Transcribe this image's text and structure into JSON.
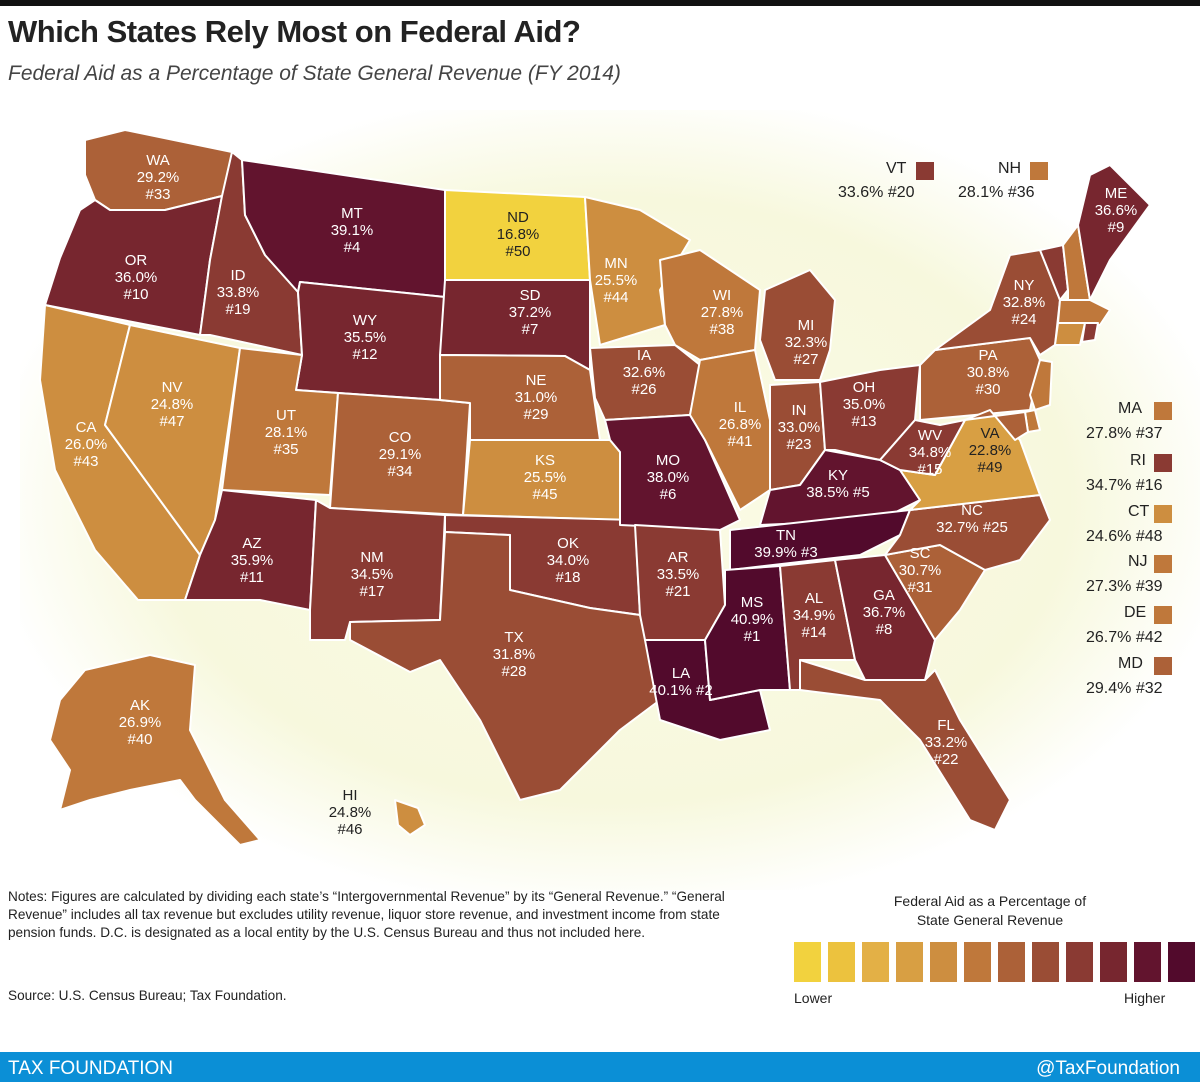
{
  "title": "Which States Rely Most on Federal Aid?",
  "subtitle": "Federal Aid as a Percentage of State General Revenue (FY 2014)",
  "colors": {
    "scale": [
      "#f2d23e",
      "#ecc23e",
      "#e3b046",
      "#d89f43",
      "#cd8e40",
      "#bf783b",
      "#ac6138",
      "#9a4d35",
      "#8a3a33",
      "#77262f",
      "#62142e",
      "#520a2c"
    ]
  },
  "states": {
    "WA": {
      "abbr": "WA",
      "pct": "29.2%",
      "rank": "#33",
      "value": 29.2
    },
    "OR": {
      "abbr": "OR",
      "pct": "36.0%",
      "rank": "#10",
      "value": 36.0
    },
    "CA": {
      "abbr": "CA",
      "pct": "26.0%",
      "rank": "#43",
      "value": 26.0
    },
    "NV": {
      "abbr": "NV",
      "pct": "24.8%",
      "rank": "#47",
      "value": 24.8
    },
    "ID": {
      "abbr": "ID",
      "pct": "33.8%",
      "rank": "#19",
      "value": 33.8
    },
    "MT": {
      "abbr": "MT",
      "pct": "39.1%",
      "rank": "#4",
      "value": 39.1
    },
    "WY": {
      "abbr": "WY",
      "pct": "35.5%",
      "rank": "#12",
      "value": 35.5
    },
    "UT": {
      "abbr": "UT",
      "pct": "28.1%",
      "rank": "#35",
      "value": 28.1
    },
    "AZ": {
      "abbr": "AZ",
      "pct": "35.9%",
      "rank": "#11",
      "value": 35.9
    },
    "CO": {
      "abbr": "CO",
      "pct": "29.1%",
      "rank": "#34",
      "value": 29.1
    },
    "NM": {
      "abbr": "NM",
      "pct": "34.5%",
      "rank": "#17",
      "value": 34.5
    },
    "ND": {
      "abbr": "ND",
      "pct": "16.8%",
      "rank": "#50",
      "value": 16.8
    },
    "SD": {
      "abbr": "SD",
      "pct": "37.2%",
      "rank": "#7",
      "value": 37.2
    },
    "NE": {
      "abbr": "NE",
      "pct": "31.0%",
      "rank": "#29",
      "value": 31.0
    },
    "KS": {
      "abbr": "KS",
      "pct": "25.5%",
      "rank": "#45",
      "value": 25.5
    },
    "OK": {
      "abbr": "OK",
      "pct": "34.0%",
      "rank": "#18",
      "value": 34.0
    },
    "TX": {
      "abbr": "TX",
      "pct": "31.8%",
      "rank": "#28",
      "value": 31.8
    },
    "MN": {
      "abbr": "MN",
      "pct": "25.5%",
      "rank": "#44",
      "value": 25.5
    },
    "IA": {
      "abbr": "IA",
      "pct": "32.6%",
      "rank": "#26",
      "value": 32.6
    },
    "MO": {
      "abbr": "MO",
      "pct": "38.0%",
      "rank": "#6",
      "value": 38.0
    },
    "AR": {
      "abbr": "AR",
      "pct": "33.5%",
      "rank": "#21",
      "value": 33.5
    },
    "LA": {
      "abbr": "LA",
      "pct": "40.1%",
      "rank": "#2",
      "value": 40.1
    },
    "WI": {
      "abbr": "WI",
      "pct": "27.8%",
      "rank": "#38",
      "value": 27.8
    },
    "IL": {
      "abbr": "IL",
      "pct": "26.8%",
      "rank": "#41",
      "value": 26.8
    },
    "MI": {
      "abbr": "MI",
      "pct": "32.3%",
      "rank": "#27",
      "value": 32.3
    },
    "IN": {
      "abbr": "IN",
      "pct": "33.0%",
      "rank": "#23",
      "value": 33.0
    },
    "OH": {
      "abbr": "OH",
      "pct": "35.0%",
      "rank": "#13",
      "value": 35.0
    },
    "KY": {
      "abbr": "KY",
      "pct": "38.5%",
      "rank": "#5",
      "value": 38.5
    },
    "TN": {
      "abbr": "TN",
      "pct": "39.9%",
      "rank": "#3",
      "value": 39.9
    },
    "MS": {
      "abbr": "MS",
      "pct": "40.9%",
      "rank": "#1",
      "value": 40.9
    },
    "AL": {
      "abbr": "AL",
      "pct": "34.9%",
      "rank": "#14",
      "value": 34.9
    },
    "GA": {
      "abbr": "GA",
      "pct": "36.7%",
      "rank": "#8",
      "value": 36.7
    },
    "FL": {
      "abbr": "FL",
      "pct": "33.2%",
      "rank": "#22",
      "value": 33.2
    },
    "SC": {
      "abbr": "SC",
      "pct": "30.7%",
      "rank": "#31",
      "value": 30.7
    },
    "NC": {
      "abbr": "NC",
      "pct": "32.7%",
      "rank": "#25",
      "value": 32.7
    },
    "VA": {
      "abbr": "VA",
      "pct": "22.8%",
      "rank": "#49",
      "value": 22.8
    },
    "WV": {
      "abbr": "WV",
      "pct": "34.8%",
      "rank": "#15",
      "value": 34.8
    },
    "PA": {
      "abbr": "PA",
      "pct": "30.8%",
      "rank": "#30",
      "value": 30.8
    },
    "NY": {
      "abbr": "NY",
      "pct": "32.8%",
      "rank": "#24",
      "value": 32.8
    },
    "ME": {
      "abbr": "ME",
      "pct": "36.6%",
      "rank": "#9",
      "value": 36.6
    },
    "AK": {
      "abbr": "AK",
      "pct": "26.9%",
      "rank": "#40",
      "value": 26.9
    },
    "HI": {
      "abbr": "HI",
      "pct": "24.8%",
      "rank": "#46",
      "value": 24.8
    },
    "VT": {
      "abbr": "VT",
      "pct": "33.6%",
      "rank": "#20",
      "value": 33.6
    },
    "NH": {
      "abbr": "NH",
      "pct": "28.1%",
      "rank": "#36",
      "value": 28.1
    },
    "MA": {
      "abbr": "MA",
      "pct": "27.8%",
      "rank": "#37",
      "value": 27.8
    },
    "RI": {
      "abbr": "RI",
      "pct": "34.7%",
      "rank": "#16",
      "value": 34.7
    },
    "CT": {
      "abbr": "CT",
      "pct": "24.6%",
      "rank": "#48",
      "value": 24.6
    },
    "NJ": {
      "abbr": "NJ",
      "pct": "27.3%",
      "rank": "#39",
      "value": 27.3
    },
    "DE": {
      "abbr": "DE",
      "pct": "26.7%",
      "rank": "#42",
      "value": 26.7
    },
    "MD": {
      "abbr": "MD",
      "pct": "29.4%",
      "rank": "#32",
      "value": 29.4
    }
  },
  "vt_label": "VT",
  "vt_value": "33.6% #20",
  "nh_label": "NH",
  "nh_value": "28.1% #36",
  "ma_label": "MA",
  "ma_value": "27.8% #37",
  "ri_label": "RI",
  "ri_value": "34.7% #16",
  "ct_label": "CT",
  "ct_value": "24.6% #48",
  "nj_label": "NJ",
  "nj_value": "27.3% #39",
  "de_label": "DE",
  "de_value": "26.7% #42",
  "md_label": "MD",
  "md_value": "29.4% #32",
  "notes": "Notes: Figures are calculated by dividing each state’s “Intergovernmental Revenue” by its “General Revenue.” “General Revenue” includes all tax revenue but excludes utility revenue, liquor store revenue, and investment income from state pension funds. D.C. is designated as a local entity by the U.S. Census Bureau and thus not included here.",
  "source": "Source: U.S. Census Bureau; Tax Foundation.",
  "legend": {
    "title_line1": "Federal Aid as a Percentage of",
    "title_line2": "State General Revenue",
    "low": "Lower",
    "high": "Higher"
  },
  "footer": {
    "brand": "TAX FOUNDATION",
    "handle": "@TaxFoundation"
  }
}
